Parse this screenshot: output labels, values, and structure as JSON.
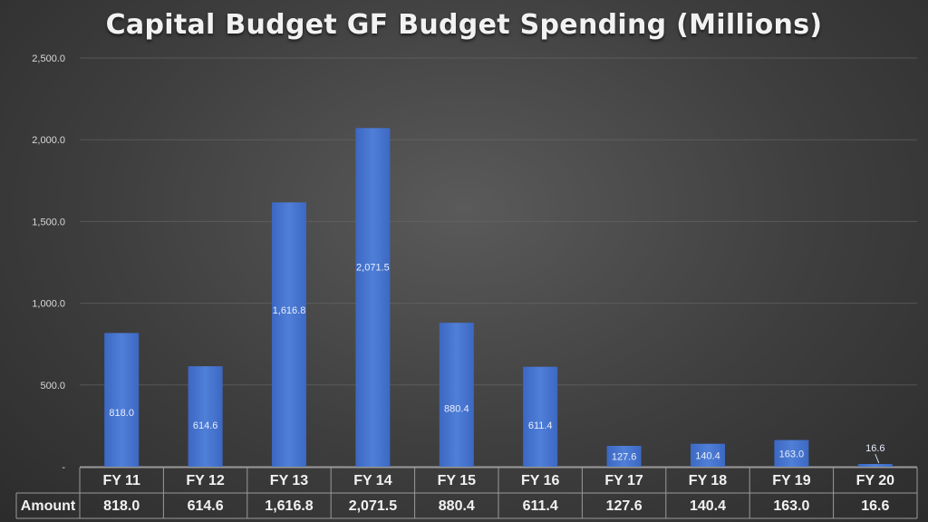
{
  "chart_data": {
    "type": "bar",
    "title": "Capital Budget GF Budget Spending (Millions)",
    "categories": [
      "FY 11",
      "FY 12",
      "FY 13",
      "FY 14",
      "FY 15",
      "FY 16",
      "FY 17",
      "FY 18",
      "FY 19",
      "FY 20"
    ],
    "values": [
      818.0,
      614.6,
      1616.8,
      2071.5,
      880.4,
      611.4,
      127.6,
      140.4,
      163.0,
      16.6
    ],
    "value_labels": [
      "818.0",
      "614.6",
      "1,616.8",
      "2,071.5",
      "880.4",
      "611.4",
      "127.6",
      "140.4",
      "163.0",
      "16.6"
    ],
    "ylim": [
      0,
      2500
    ],
    "yticks": [
      0,
      500,
      1000,
      1500,
      2000,
      2500
    ],
    "ytick_labels": [
      "-",
      "500.0",
      "1,000.0",
      "1,500.0",
      "2,000.0",
      "2,500.0"
    ],
    "grid": true,
    "xlabel": "",
    "ylabel": "",
    "table_row_label": "Amount",
    "bar_color": "#4472c4"
  }
}
